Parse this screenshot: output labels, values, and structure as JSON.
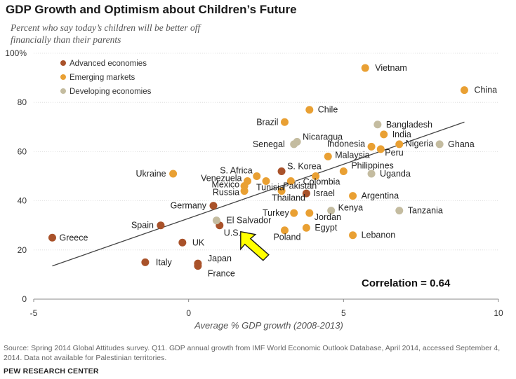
{
  "chart_data": {
    "type": "scatter",
    "title": "GDP Growth and Optimism about Children’s Future",
    "subtitle": "Percent who say today’s children will be better off financially than their parents",
    "xlabel": "Average % GDP growth (2008-2013)",
    "ylabel": "",
    "xlim": [
      -5,
      10
    ],
    "ylim": [
      0,
      100
    ],
    "x_ticks": [
      "-5",
      "0",
      "5",
      "10"
    ],
    "y_ticks": [
      "0",
      "20",
      "40",
      "60",
      "80",
      "100%"
    ],
    "grid": "horizontal",
    "legend_position": "top-left",
    "correlation_label": "Correlation = 0.64",
    "trendline": {
      "x": [
        -4.4,
        8.9
      ],
      "y": [
        13.5,
        72
      ]
    },
    "series": [
      {
        "name": "Advanced economies",
        "color": "#a9522a",
        "points": [
          {
            "label": "Greece",
            "x": -4.4,
            "y": 25
          },
          {
            "label": "Spain",
            "x": -0.9,
            "y": 30
          },
          {
            "label": "Italy",
            "x": -1.4,
            "y": 15
          },
          {
            "label": "UK",
            "x": -0.2,
            "y": 23
          },
          {
            "label": "Japan",
            "x": 0.3,
            "y": 14.5
          },
          {
            "label": "France",
            "x": 0.3,
            "y": 13.5
          },
          {
            "label": "Germany",
            "x": 0.8,
            "y": 38
          },
          {
            "label": "U.S.",
            "x": 1.0,
            "y": 30
          },
          {
            "label": "S. Korea",
            "x": 3.0,
            "y": 52
          },
          {
            "label": "Israel",
            "x": 3.8,
            "y": 43
          }
        ]
      },
      {
        "name": "Emerging markets",
        "color": "#e9a033",
        "points": [
          {
            "label": "Vietnam",
            "x": 5.7,
            "y": 94
          },
          {
            "label": "China",
            "x": 8.9,
            "y": 85
          },
          {
            "label": "Chile",
            "x": 3.9,
            "y": 77
          },
          {
            "label": "Brazil",
            "x": 3.1,
            "y": 72
          },
          {
            "label": "India",
            "x": 6.3,
            "y": 67
          },
          {
            "label": "Indonesia",
            "x": 5.9,
            "y": 62
          },
          {
            "label": "Malaysia",
            "x": 4.5,
            "y": 58
          },
          {
            "label": "Peru",
            "x": 6.2,
            "y": 61
          },
          {
            "label": "Nigeria",
            "x": 6.8,
            "y": 63
          },
          {
            "label": "Ukraine",
            "x": -0.5,
            "y": 51
          },
          {
            "label": "S. Africa",
            "x": 2.2,
            "y": 50
          },
          {
            "label": "Venezuela",
            "x": 1.9,
            "y": 48
          },
          {
            "label": "Tunisia",
            "x": 2.5,
            "y": 48
          },
          {
            "label": "Mexico",
            "x": 1.8,
            "y": 46
          },
          {
            "label": "Russia",
            "x": 1.8,
            "y": 44
          },
          {
            "label": "Pakistan",
            "x": 3.3,
            "y": 48
          },
          {
            "label": "Colombia",
            "x": 4.1,
            "y": 50
          },
          {
            "label": "Philippines",
            "x": 5.0,
            "y": 52
          },
          {
            "label": "Thailand",
            "x": 3.0,
            "y": 44
          },
          {
            "label": "Argentina",
            "x": 5.3,
            "y": 42
          },
          {
            "label": "Turkey",
            "x": 3.4,
            "y": 35
          },
          {
            "label": "Jordan",
            "x": 3.9,
            "y": 35
          },
          {
            "label": "Poland",
            "x": 3.1,
            "y": 28
          },
          {
            "label": "Egypt",
            "x": 3.8,
            "y": 29
          },
          {
            "label": "Lebanon",
            "x": 5.3,
            "y": 26
          }
        ]
      },
      {
        "name": "Developing economies",
        "color": "#c4bca0",
        "points": [
          {
            "label": "Bangladesh",
            "x": 6.1,
            "y": 71
          },
          {
            "label": "Senegal",
            "x": 3.4,
            "y": 63
          },
          {
            "label": "Nicaragua",
            "x": 3.5,
            "y": 64
          },
          {
            "label": "Ghana",
            "x": 8.1,
            "y": 63
          },
          {
            "label": "Uganda",
            "x": 5.9,
            "y": 51
          },
          {
            "label": "Kenya",
            "x": 4.6,
            "y": 36
          },
          {
            "label": "Tanzania",
            "x": 6.8,
            "y": 36
          },
          {
            "label": "El Salvador",
            "x": 0.9,
            "y": 32
          }
        ]
      }
    ]
  },
  "source_text": "Source: Spring 2014 Global Attitudes survey. Q11. GDP annual growth from IMF World Economic Outlook Database, April 2014, accessed September 4, 2014. Data not available for Palestinian territories.",
  "brand": "PEW RESEARCH CENTER",
  "highlight": {
    "label": "U.S.",
    "arrow_color": "#ffff00",
    "arrow_outline": "#1a1a1a"
  }
}
